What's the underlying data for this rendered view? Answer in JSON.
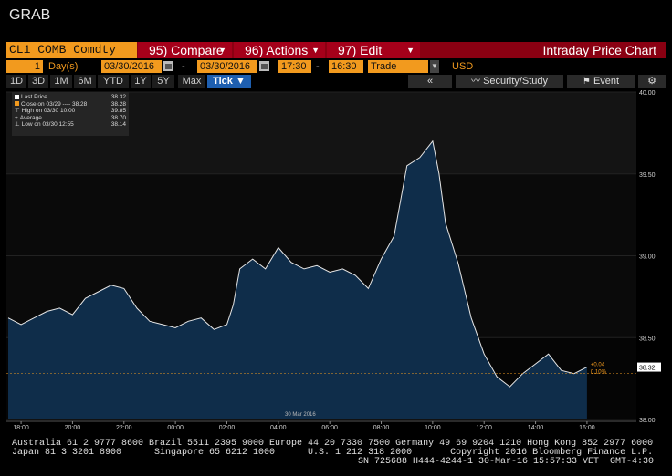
{
  "header": {
    "grab_label": "GRAB"
  },
  "command_bar": {
    "ticker": "CL1 COMB Comdty",
    "buttons": [
      {
        "label": "95) Compare"
      },
      {
        "label": "96) Actions"
      },
      {
        "label": "97) Edit"
      }
    ],
    "title": "Intraday Price Chart"
  },
  "settings": {
    "period_value": "1",
    "period_unit": "Day(s)",
    "start_date": "03/30/2016",
    "end_date": "03/30/2016",
    "start_time": "17:30",
    "end_time": "16:30",
    "data_type": "Trade",
    "currency": "USD"
  },
  "range_buttons": [
    "1D",
    "3D",
    "1M",
    "6M",
    "YTD",
    "1Y",
    "5Y",
    "Max"
  ],
  "tick_button": "Tick ▼",
  "tools": {
    "collapse": "«",
    "security_study": "Security/Study",
    "event": "Event"
  },
  "colors": {
    "accent_orange": "#f29a1e",
    "bar_red": "#8a0012",
    "area_fill": "#0f2d4a",
    "line": "#e6e6e6",
    "active_blue": "#1e5fb0"
  },
  "legend": {
    "items": [
      {
        "label": "Last Price",
        "value": "38.32",
        "swatch": "#ffffff"
      },
      {
        "label": "Close on 03/29 ---- 38.28",
        "value": "38.28",
        "swatch": "#f29a1e"
      },
      {
        "label": "High on 03/30 10:00",
        "value": "39.85",
        "swatch": ""
      },
      {
        "label": "Average",
        "value": "38.70",
        "swatch": ""
      },
      {
        "label": "Low on 03/30 12:55",
        "value": "38.14",
        "swatch": ""
      }
    ]
  },
  "chart_data": {
    "type": "area",
    "title": "",
    "xlabel": "30 Mar 2016",
    "ylabel": "",
    "ylim": [
      38.0,
      40.0
    ],
    "yticks": [
      "38.00",
      "38.50",
      "39.00",
      "39.50",
      "40.00"
    ],
    "xticks": [
      "18:00",
      "20:00",
      "22:00",
      "00:00",
      "02:00",
      "04:00",
      "06:00",
      "08:00",
      "10:00",
      "12:00",
      "14:00",
      "16:00"
    ],
    "last_price_label": "38.32",
    "change_labels": [
      "+0.04",
      "0.10%"
    ],
    "x": [
      "17:30",
      "18:00",
      "18:30",
      "19:00",
      "19:30",
      "20:00",
      "20:30",
      "21:00",
      "21:30",
      "22:00",
      "22:30",
      "23:00",
      "23:30",
      "00:00",
      "00:30",
      "01:00",
      "01:30",
      "02:00",
      "02:15",
      "02:30",
      "03:00",
      "03:30",
      "04:00",
      "04:30",
      "05:00",
      "05:30",
      "06:00",
      "06:30",
      "07:00",
      "07:30",
      "08:00",
      "08:30",
      "09:00",
      "09:30",
      "10:00",
      "10:15",
      "10:30",
      "11:00",
      "11:30",
      "12:00",
      "12:30",
      "13:00",
      "13:30",
      "14:00",
      "14:30",
      "15:00",
      "15:30",
      "16:00"
    ],
    "series": [
      {
        "values": [
          38.62,
          38.58,
          38.62,
          38.66,
          38.68,
          38.64,
          38.74,
          38.78,
          38.82,
          38.8,
          38.68,
          38.6,
          38.58,
          38.56,
          38.6,
          38.62,
          38.55,
          38.58,
          38.7,
          38.92,
          38.98,
          38.92,
          39.05,
          38.96,
          38.92,
          38.94,
          38.9,
          38.92,
          38.88,
          38.8,
          38.98,
          39.12,
          39.55,
          39.6,
          39.7,
          39.5,
          39.2,
          38.95,
          38.62,
          38.4,
          38.26,
          38.2,
          38.28,
          38.34,
          38.4,
          38.3,
          38.28,
          38.32
        ]
      }
    ]
  },
  "footer": {
    "line1": "Australia 61 2 9777 8600 Brazil 5511 2395 9000 Europe 44 20 7330 7500 Germany 49 69 9204 1210 Hong Kong 852 2977 6000",
    "line2": "Japan 81 3 3201 8900      Singapore 65 6212 1000      U.S. 1 212 318 2000       Copyright 2016 Bloomberg Finance L.P.",
    "line3": "SN 725688 H444-4244-1 30-Mar-16 15:57:33 VET  GMT-4:30"
  }
}
